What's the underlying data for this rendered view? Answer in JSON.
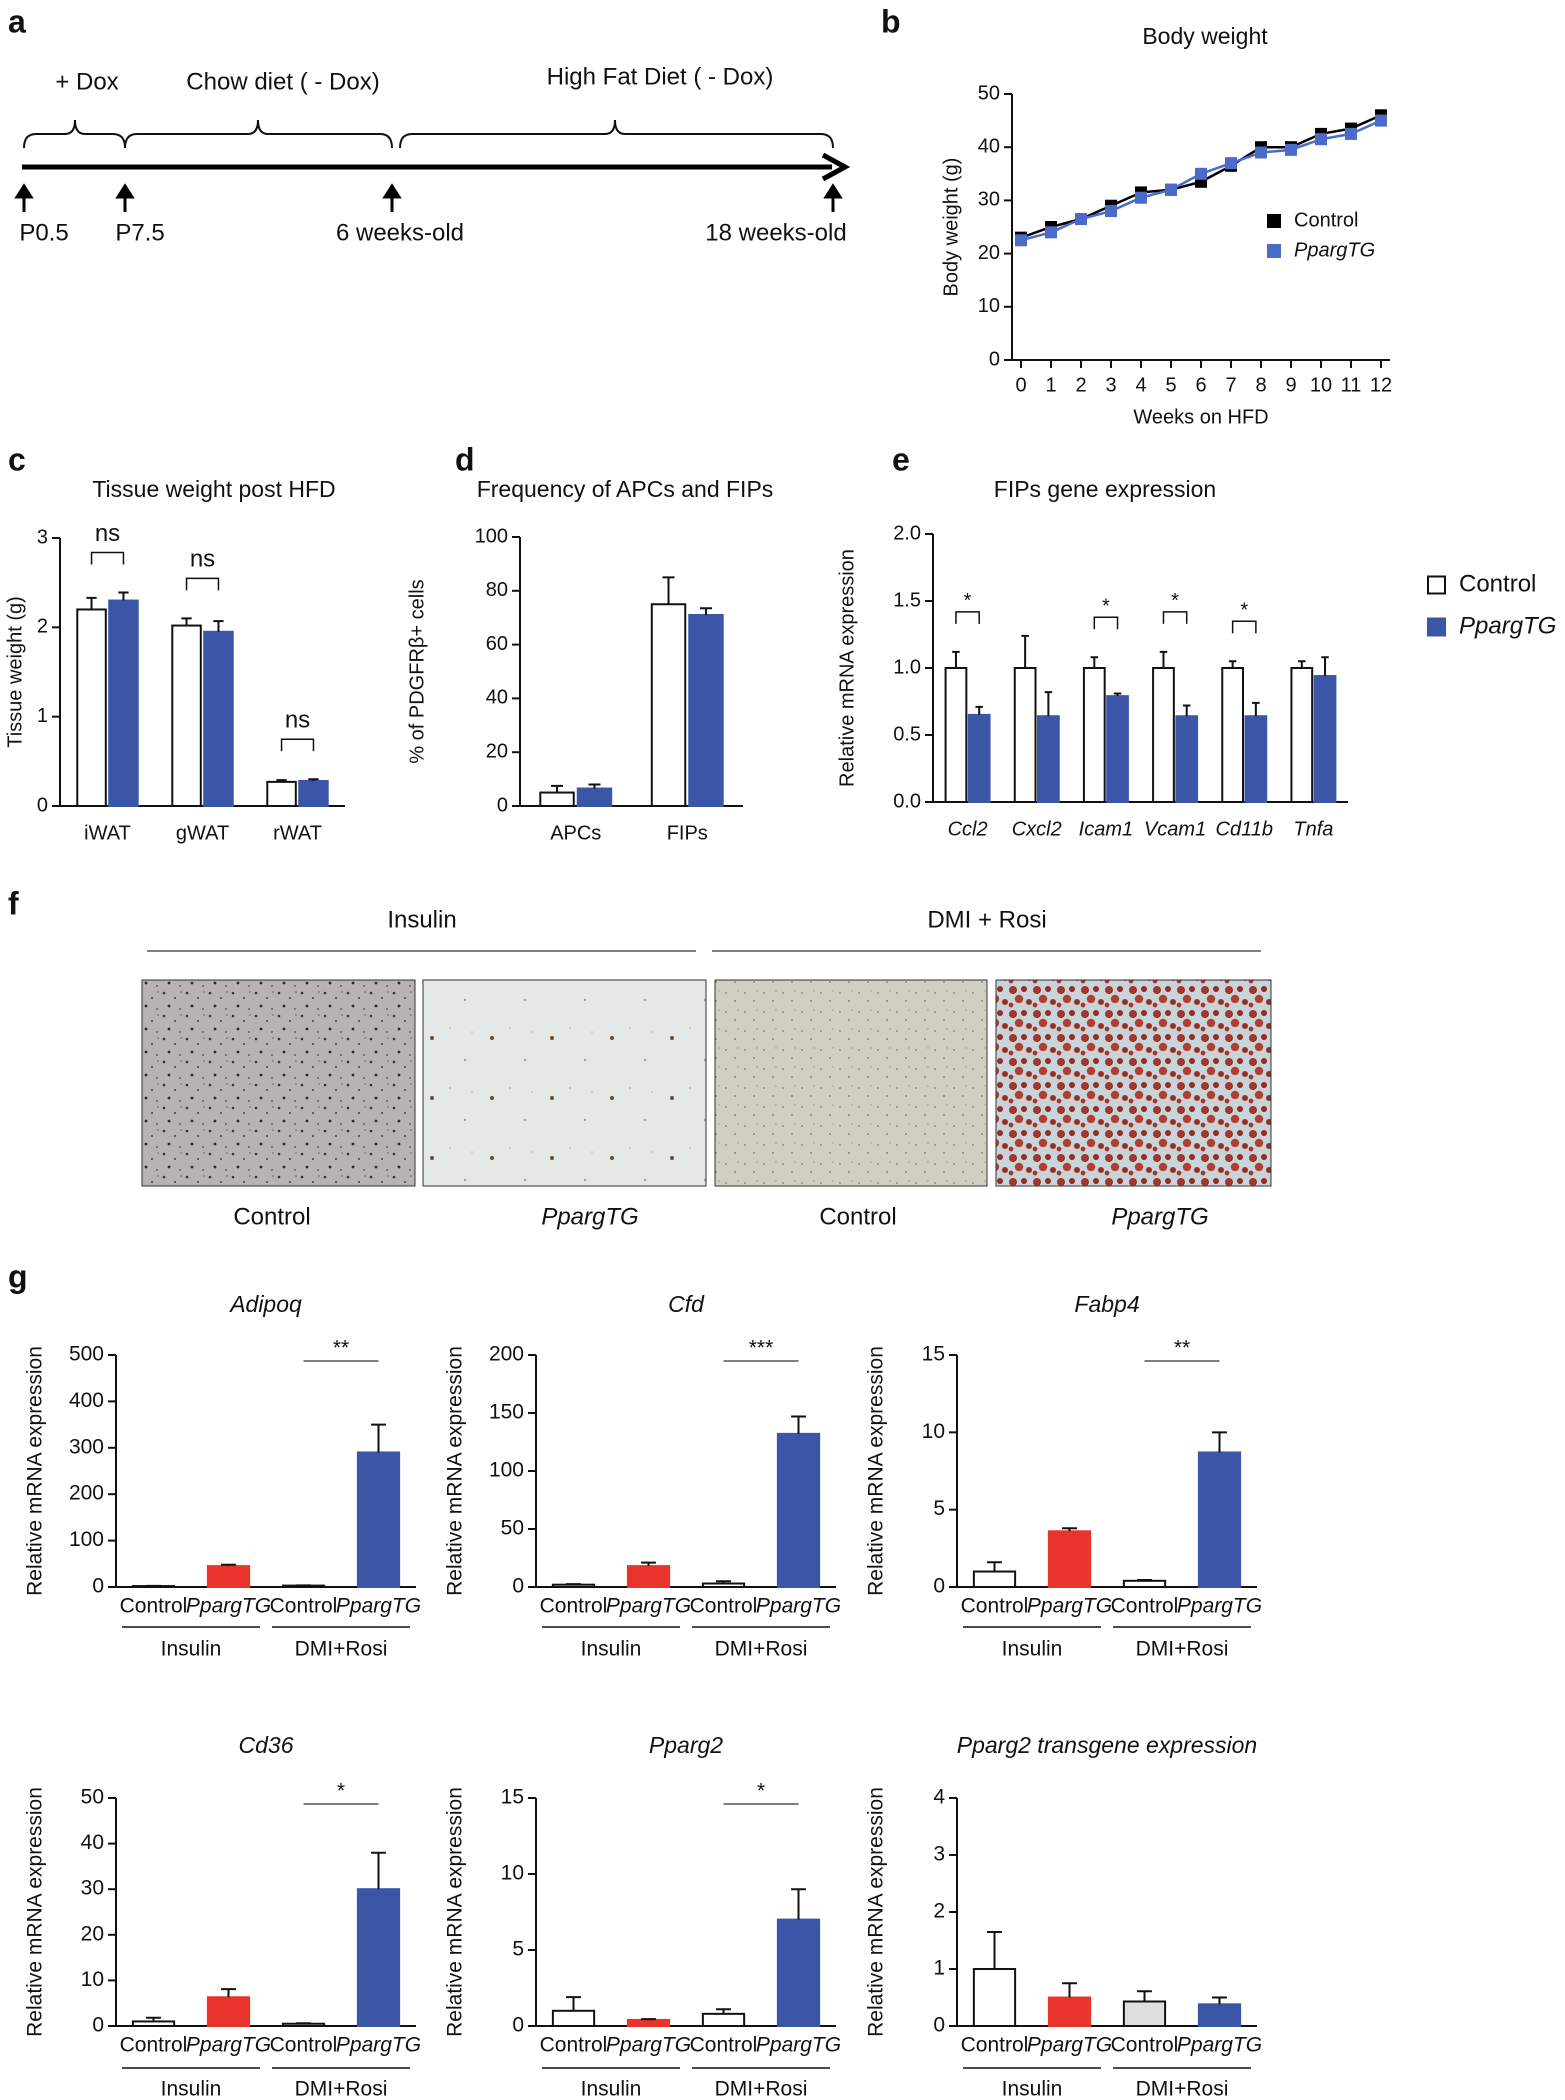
{
  "panel_labels": [
    "a",
    "b",
    "c",
    "d",
    "e",
    "f",
    "g"
  ],
  "timeline": {
    "phases": [
      "+ Dox",
      "Chow diet ( - Dox)",
      "High Fat Diet ( - Dox)"
    ],
    "time_points": [
      "P0.5",
      "P7.5",
      "6 weeks-old",
      "18 weeks-old"
    ]
  },
  "micrographs": {
    "groups": [
      "Insulin",
      "DMI + Rosi"
    ],
    "captions": [
      "Control",
      "PpargTG",
      "Control",
      "PpargTG"
    ]
  },
  "chart_data": [
    {
      "type": "line",
      "title": "Body weight",
      "x_label": "Weeks on HFD",
      "y_label": "Body weight (g)",
      "x": [
        0,
        1,
        2,
        3,
        4,
        5,
        6,
        7,
        8,
        9,
        10,
        11,
        12
      ],
      "xlim": [
        -0.3,
        12.3
      ],
      "xticks": [
        0,
        1,
        2,
        3,
        4,
        5,
        6,
        7,
        8,
        9,
        10,
        11,
        12
      ],
      "ylim": [
        0,
        50
      ],
      "yticks": [
        0,
        10,
        20,
        30,
        40,
        50
      ],
      "legend": true,
      "series": [
        {
          "name": "Control",
          "color": "#000000",
          "values": [
            23,
            25,
            26.5,
            29,
            31.5,
            32,
            33.5,
            36.5,
            40,
            40,
            42.5,
            43.5,
            46
          ]
        },
        {
          "name": "PpargTG",
          "color": "#4a6cc8",
          "values": [
            22.5,
            24,
            26.5,
            28,
            30.5,
            32,
            35,
            37,
            39,
            39.5,
            41.5,
            42.5,
            45
          ]
        }
      ]
    },
    {
      "type": "bar",
      "title": "Tissue weight post HFD",
      "y_label": "Tissue weight (g)",
      "categories": [
        "iWAT",
        "gWAT",
        "rWAT"
      ],
      "ylim": [
        0,
        3
      ],
      "yticks": [
        0,
        1,
        2,
        3
      ],
      "series": [
        {
          "color": "#ffffff",
          "values": [
            2.2,
            2.02,
            0.27
          ],
          "errors": [
            0.13,
            0.08,
            0.02
          ]
        },
        {
          "color": "#3b56a6",
          "values": [
            2.3,
            1.95,
            0.28
          ],
          "errors": [
            0.09,
            0.12,
            0.02
          ]
        }
      ],
      "annotations": [
        {
          "text": "ns",
          "category": 0
        },
        {
          "text": "ns",
          "category": 1
        },
        {
          "text": "ns",
          "category": 2
        }
      ]
    },
    {
      "type": "bar",
      "title": "Frequency of APCs and FIPs",
      "y_label": "% of PDGFRβ+ cells",
      "categories": [
        "APCs",
        "FIPs"
      ],
      "ylim": [
        0,
        100
      ],
      "yticks": [
        0,
        20,
        40,
        60,
        80,
        100
      ],
      "series": [
        {
          "color": "#ffffff",
          "values": [
            5,
            75
          ],
          "errors": [
            2.5,
            10
          ]
        },
        {
          "color": "#3b56a6",
          "values": [
            6.5,
            71
          ],
          "errors": [
            1.5,
            2.5
          ]
        }
      ]
    },
    {
      "type": "bar",
      "title": "FIPs gene expression",
      "y_label": "Relative mRNA expression",
      "categories": [
        "Ccl2",
        "Cxcl2",
        "Icam1",
        "Vcam1",
        "Cd11b",
        "Tnfa"
      ],
      "ylim": [
        0,
        2
      ],
      "yticks": [
        {
          "value": 0,
          "label": "0.0"
        },
        0.5,
        {
          "value": 1,
          "label": "1.0"
        },
        1.5,
        {
          "value": 2,
          "label": "2.0"
        }
      ],
      "legend": true,
      "series": [
        {
          "name": "Control",
          "color": "#ffffff",
          "values": [
            1.0,
            1.0,
            1.0,
            1.0,
            1.0,
            1.0
          ],
          "errors": [
            0.12,
            0.24,
            0.08,
            0.12,
            0.05,
            0.05
          ]
        },
        {
          "name": "PpargTG",
          "color": "#3b56a6",
          "values": [
            0.65,
            0.64,
            0.79,
            0.64,
            0.64,
            0.94
          ],
          "errors": [
            0.06,
            0.18,
            0.02,
            0.08,
            0.1,
            0.14
          ]
        }
      ],
      "annotations": [
        {
          "text": "*",
          "category": 0
        },
        {
          "text": "*",
          "category": 2
        },
        {
          "text": "*",
          "category": 3
        },
        {
          "text": "*",
          "category": 4
        }
      ]
    },
    {
      "type": "bar",
      "title": "Adipoq",
      "y_label": "Relative mRNA expression",
      "categories": [
        "Control",
        "PpargTG",
        "Control",
        "PpargTG"
      ],
      "groups": [
        "Insulin",
        "DMI+Rosi"
      ],
      "values": [
        2,
        45,
        3,
        290
      ],
      "errors": [
        0.5,
        3,
        0.5,
        60
      ],
      "colors": [
        "#ffffff",
        "#e8342a",
        "#ffffff",
        "#3b56a6"
      ],
      "ylim": [
        0,
        500
      ],
      "yticks": [
        0,
        100,
        200,
        300,
        400,
        500
      ],
      "annotations": [
        {
          "text": "**",
          "between": [
            2,
            3
          ]
        }
      ]
    },
    {
      "type": "bar",
      "title": "Cfd",
      "y_label": "Relative mRNA expression",
      "categories": [
        "Control",
        "PpargTG",
        "Control",
        "PpargTG"
      ],
      "groups": [
        "Insulin",
        "DMI+Rosi"
      ],
      "values": [
        2,
        18,
        3,
        132
      ],
      "errors": [
        0.5,
        3,
        2,
        15
      ],
      "colors": [
        "#ffffff",
        "#e8342a",
        "#ffffff",
        "#3b56a6"
      ],
      "ylim": [
        0,
        200
      ],
      "yticks": [
        0,
        50,
        100,
        150,
        200
      ],
      "annotations": [
        {
          "text": "***",
          "between": [
            2,
            3
          ]
        }
      ]
    },
    {
      "type": "bar",
      "title": "Fabp4",
      "y_label": "Relative mRNA expression",
      "categories": [
        "Control",
        "PpargTG",
        "Control",
        "PpargTG"
      ],
      "groups": [
        "Insulin",
        "DMI+Rosi"
      ],
      "values": [
        1,
        3.6,
        0.4,
        8.7
      ],
      "errors": [
        0.6,
        0.2,
        0.05,
        1.3
      ],
      "colors": [
        "#ffffff",
        "#e8342a",
        "#ffffff",
        "#3b56a6"
      ],
      "ylim": [
        0,
        15
      ],
      "yticks": [
        0,
        5,
        10,
        15
      ],
      "annotations": [
        {
          "text": "**",
          "between": [
            2,
            3
          ]
        }
      ]
    },
    {
      "type": "bar",
      "title": "Cd36",
      "y_label": "Relative mRNA expression",
      "categories": [
        "Control",
        "PpargTG",
        "Control",
        "PpargTG"
      ],
      "groups": [
        "Insulin",
        "DMI+Rosi"
      ],
      "values": [
        1,
        6.3,
        0.5,
        30
      ],
      "errors": [
        0.8,
        1.8,
        0.1,
        8
      ],
      "colors": [
        "#ffffff",
        "#e8342a",
        "#ffffff",
        "#3b56a6"
      ],
      "ylim": [
        0,
        50
      ],
      "yticks": [
        0,
        10,
        20,
        30,
        40,
        50
      ],
      "annotations": [
        {
          "text": "*",
          "between": [
            2,
            3
          ]
        }
      ]
    },
    {
      "type": "bar",
      "title": "Pparg2",
      "y_label": "Relative mRNA expression",
      "categories": [
        "Control",
        "PpargTG",
        "Control",
        "PpargTG"
      ],
      "groups": [
        "Insulin",
        "DMI+Rosi"
      ],
      "values": [
        1,
        0.4,
        0.8,
        7
      ],
      "errors": [
        0.9,
        0.05,
        0.3,
        2
      ],
      "colors": [
        "#ffffff",
        "#e8342a",
        "#ffffff",
        "#3b56a6"
      ],
      "ylim": [
        0,
        15
      ],
      "yticks": [
        0,
        5,
        10,
        15
      ],
      "annotations": [
        {
          "text": "*",
          "between": [
            2,
            3
          ]
        }
      ]
    },
    {
      "type": "bar",
      "title": "Pparg2 transgene expression",
      "y_label": "Relative mRNA expression",
      "categories": [
        "Control",
        "PpargTG",
        "Control",
        "PpargTG"
      ],
      "groups": [
        "Insulin",
        "DMI+Rosi"
      ],
      "values": [
        1,
        0.5,
        0.43,
        0.38
      ],
      "errors": [
        0.65,
        0.25,
        0.18,
        0.12
      ],
      "colors": [
        "#ffffff",
        "#e8342a",
        "#dedede",
        "#3b56a6"
      ],
      "ylim": [
        0,
        4
      ],
      "yticks": [
        0,
        1,
        2,
        3,
        4
      ]
    }
  ]
}
